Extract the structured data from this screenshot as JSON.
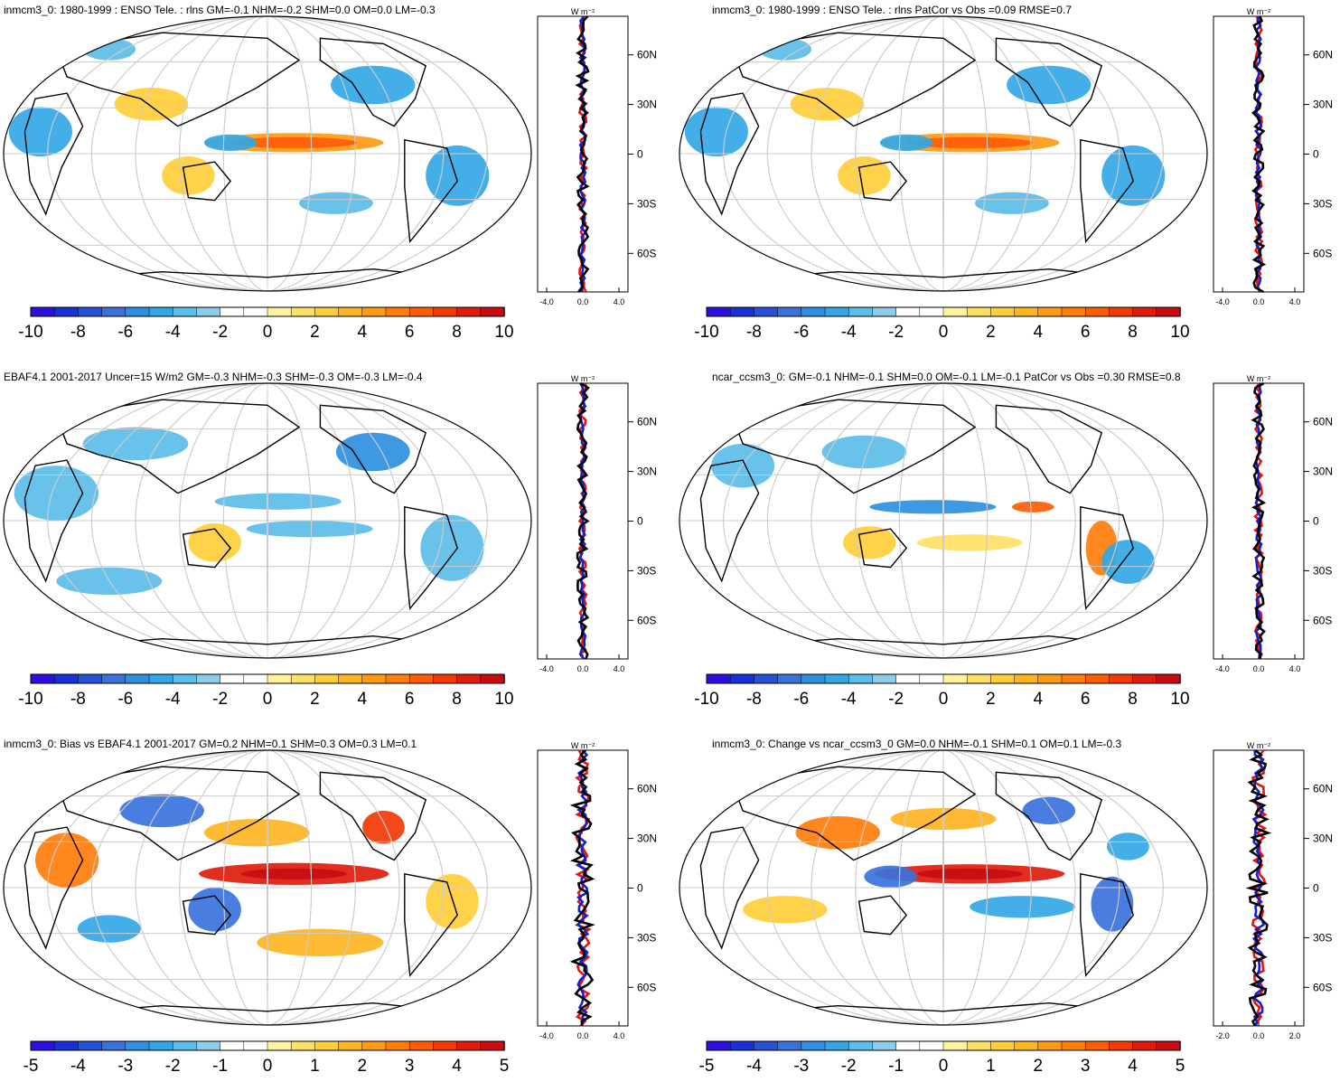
{
  "units_label": "W m⁻²",
  "lat_labels": [
    "60N",
    "30N",
    "0",
    "30S",
    "60S"
  ],
  "panels": [
    {
      "title": "inmcm3_0: 1980-1999 : ENSO Tele. : rlns GM=-0.1 NHM=-0.2 SHM=0.0 OM=0.0 LM=-0.3",
      "colorbar_labels": [
        "-10",
        "-8",
        "-6",
        "-4",
        "-2",
        "0",
        "2",
        "4",
        "6",
        "8",
        "10"
      ],
      "profile_ticks": [
        "-4.0",
        "0.0",
        "4.0"
      ]
    },
    {
      "title": "inmcm3_0: 1980-1999 : ENSO Tele. : rlns PatCor vs Obs =0.09 RMSE=0.7",
      "colorbar_labels": [
        "-10",
        "-8",
        "-6",
        "-4",
        "-2",
        "0",
        "2",
        "4",
        "6",
        "8",
        "10"
      ],
      "profile_ticks": [
        "-4.0",
        "0.0",
        "4.0"
      ]
    },
    {
      "title": "EBAF4.1 2001-2017 Uncer=15 W/m2 GM=-0.3 NHM=-0.3 SHM=-0.3 OM=-0.3 LM=-0.4",
      "colorbar_labels": [
        "-10",
        "-8",
        "-6",
        "-4",
        "-2",
        "0",
        "2",
        "4",
        "6",
        "8",
        "10"
      ],
      "profile_ticks": [
        "-4.0",
        "0.0",
        "4.0"
      ]
    },
    {
      "title": "ncar_ccsm3_0: GM=-0.1 NHM=-0.1 SHM=0.0 OM=-0.1 LM=-0.1 PatCor vs Obs =0.30 RMSE=0.8",
      "colorbar_labels": [
        "-10",
        "-8",
        "-6",
        "-4",
        "-2",
        "0",
        "2",
        "4",
        "6",
        "8",
        "10"
      ],
      "profile_ticks": [
        "-4.0",
        "0.0",
        "4.0"
      ]
    },
    {
      "title": "inmcm3_0: Bias vs EBAF4.1 2001-2017 GM=0.2 NHM=0.1 SHM=0.3 OM=0.3 LM=0.1",
      "colorbar_labels": [
        "-5",
        "-4",
        "-3",
        "-2",
        "-1",
        "0",
        "1",
        "2",
        "3",
        "4",
        "5"
      ],
      "profile_ticks": [
        "-4.0",
        "0.0",
        "4.0"
      ]
    },
    {
      "title": "inmcm3_0: Change vs ncar_ccsm3_0 GM=0.0 NHM=-0.1 SHM=0.1 OM=0.1 LM=-0.3",
      "colorbar_labels": [
        "-5",
        "-4",
        "-3",
        "-2",
        "-1",
        "0",
        "1",
        "2",
        "3",
        "4",
        "5"
      ],
      "profile_ticks": [
        "-2.0",
        "0.0",
        "2.0"
      ]
    }
  ],
  "colormap": [
    "#2c10e0",
    "#1a2fd8",
    "#2552d6",
    "#3a72dc",
    "#2f8fe0",
    "#33a7e6",
    "#5bbde8",
    "#8ecdea",
    "#ffffff",
    "#ffffff",
    "#fff3a0",
    "#ffe066",
    "#ffce3a",
    "#ffb422",
    "#ff9a12",
    "#ff7d0a",
    "#ff5c06",
    "#f23a06",
    "#e01c0c",
    "#c80c10"
  ]
}
